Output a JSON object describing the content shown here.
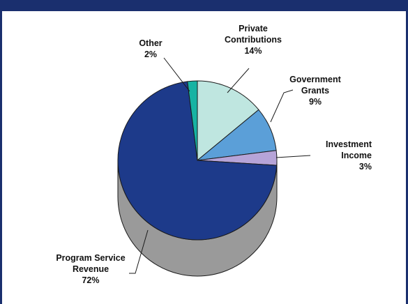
{
  "chart_data": {
    "type": "pie",
    "style": "3d",
    "title": "",
    "slices": [
      {
        "label_lines": [
          "Private",
          "Contributions"
        ],
        "pct": "14%",
        "value": 14,
        "color": "#bfe6e0"
      },
      {
        "label_lines": [
          "Government",
          "Grants"
        ],
        "pct": "9%",
        "value": 9,
        "color": "#5b9fd8"
      },
      {
        "label_lines": [
          "Investment",
          "Income"
        ],
        "pct": "3%",
        "value": 3,
        "color": "#b6a4d8"
      },
      {
        "label_lines": [
          "Program Service",
          "Revenue"
        ],
        "pct": "72%",
        "value": 72,
        "color": "#1d3a8a"
      },
      {
        "label_lines": [
          "Other"
        ],
        "pct": "2%",
        "value": 2,
        "color": "#17b3a3"
      }
    ],
    "colors": {
      "frame": "#1a2f6e",
      "pie_side": "#9a9a9a",
      "outline": "#1a1a1a"
    }
  }
}
